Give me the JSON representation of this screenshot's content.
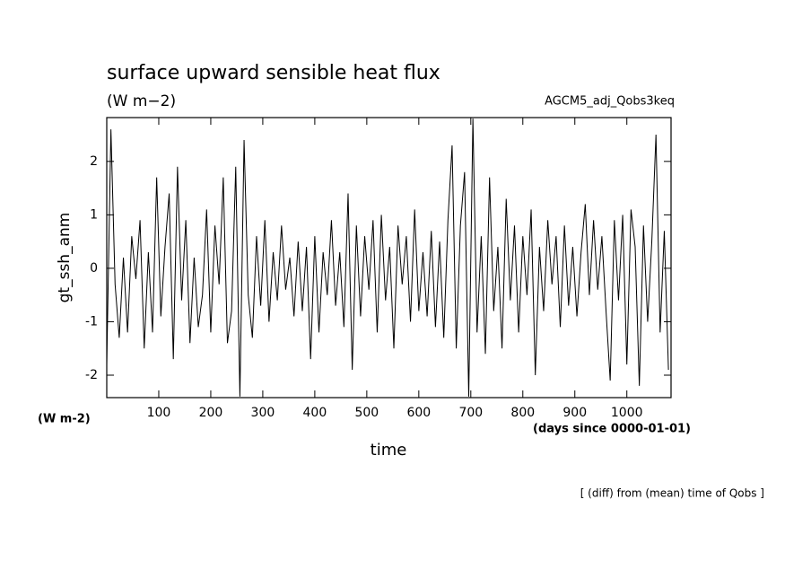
{
  "chart_data": {
    "type": "line",
    "title": "surface upward sensible heat flux",
    "units_top": "(W m−2)",
    "dataset": "AGCM5_adj_Qobs3keq",
    "ylabel": "gt_ssh_anm",
    "units_bottom": "(W m-2)",
    "xunits": "(days since 0000-01-01)",
    "xlabel": "time",
    "note": "[ (diff) from (mean) time of Qobs ]",
    "color": "#000000",
    "xlim": [
      0,
      1085
    ],
    "ylim": [
      -2.42,
      2.82
    ],
    "xticks": [
      100,
      200,
      300,
      400,
      500,
      600,
      700,
      800,
      900,
      1000
    ],
    "yticks": [
      -2,
      -1,
      0,
      1,
      2
    ],
    "x": [
      0,
      8,
      16,
      24,
      32,
      40,
      48,
      56,
      64,
      72,
      80,
      88,
      96,
      104,
      112,
      120,
      128,
      136,
      144,
      152,
      160,
      168,
      176,
      184,
      192,
      200,
      208,
      216,
      224,
      232,
      240,
      248,
      256,
      264,
      272,
      280,
      288,
      296,
      304,
      312,
      320,
      328,
      336,
      344,
      352,
      360,
      368,
      376,
      384,
      392,
      400,
      408,
      416,
      424,
      432,
      440,
      448,
      456,
      464,
      472,
      480,
      488,
      496,
      504,
      512,
      520,
      528,
      536,
      544,
      552,
      560,
      568,
      576,
      584,
      592,
      600,
      608,
      616,
      624,
      632,
      640,
      648,
      656,
      664,
      672,
      680,
      688,
      696,
      704,
      712,
      720,
      728,
      736,
      744,
      752,
      760,
      768,
      776,
      784,
      792,
      800,
      808,
      816,
      824,
      832,
      840,
      848,
      856,
      864,
      872,
      880,
      888,
      896,
      904,
      912,
      920,
      928,
      936,
      944,
      952,
      960,
      968,
      976,
      984,
      992,
      1000,
      1008,
      1016,
      1024,
      1032,
      1040,
      1048,
      1056,
      1064,
      1072,
      1080
    ],
    "values": [
      -1.8,
      2.6,
      -0.3,
      -1.3,
      0.2,
      -1.2,
      0.6,
      -0.2,
      0.9,
      -1.5,
      0.3,
      -1.2,
      1.7,
      -0.9,
      0.4,
      1.4,
      -1.7,
      1.9,
      -0.6,
      0.9,
      -1.4,
      0.2,
      -1.1,
      -0.5,
      1.1,
      -1.2,
      0.8,
      -0.3,
      1.7,
      -1.4,
      -0.8,
      1.9,
      -2.4,
      2.4,
      -0.5,
      -1.3,
      0.6,
      -0.7,
      0.9,
      -1.0,
      0.3,
      -0.6,
      0.8,
      -0.4,
      0.2,
      -0.9,
      0.5,
      -0.8,
      0.4,
      -1.7,
      0.6,
      -1.2,
      0.3,
      -0.5,
      0.9,
      -0.7,
      0.3,
      -1.1,
      1.4,
      -1.9,
      0.8,
      -0.9,
      0.6,
      -0.4,
      0.9,
      -1.2,
      1.0,
      -0.6,
      0.4,
      -1.5,
      0.8,
      -0.3,
      0.6,
      -1.0,
      1.1,
      -0.8,
      0.3,
      -0.9,
      0.7,
      -1.1,
      0.5,
      -1.3,
      0.9,
      2.3,
      -1.5,
      0.8,
      1.8,
      -2.4,
      2.8,
      -1.2,
      0.6,
      -1.6,
      1.7,
      -0.8,
      0.4,
      -1.5,
      1.3,
      -0.6,
      0.8,
      -1.2,
      0.6,
      -0.5,
      1.1,
      -2.0,
      0.4,
      -0.8,
      0.9,
      -0.3,
      0.6,
      -1.1,
      0.8,
      -0.7,
      0.4,
      -0.9,
      0.3,
      1.2,
      -0.5,
      0.9,
      -0.4,
      0.6,
      -0.8,
      -2.1,
      0.9,
      -0.6,
      1.0,
      -1.8,
      1.1,
      0.4,
      -2.2,
      0.8,
      -1.0,
      0.5,
      2.5,
      -1.2,
      0.7,
      -1.9
    ]
  }
}
